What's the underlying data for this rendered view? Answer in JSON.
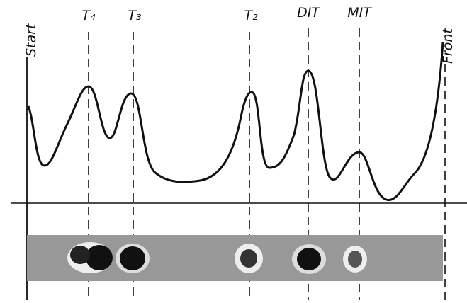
{
  "labels": {
    "start": "Start",
    "front": "Front",
    "peaks": [
      "T₄",
      "T₃",
      "T₂",
      "DIT",
      "MIT"
    ]
  }
}
